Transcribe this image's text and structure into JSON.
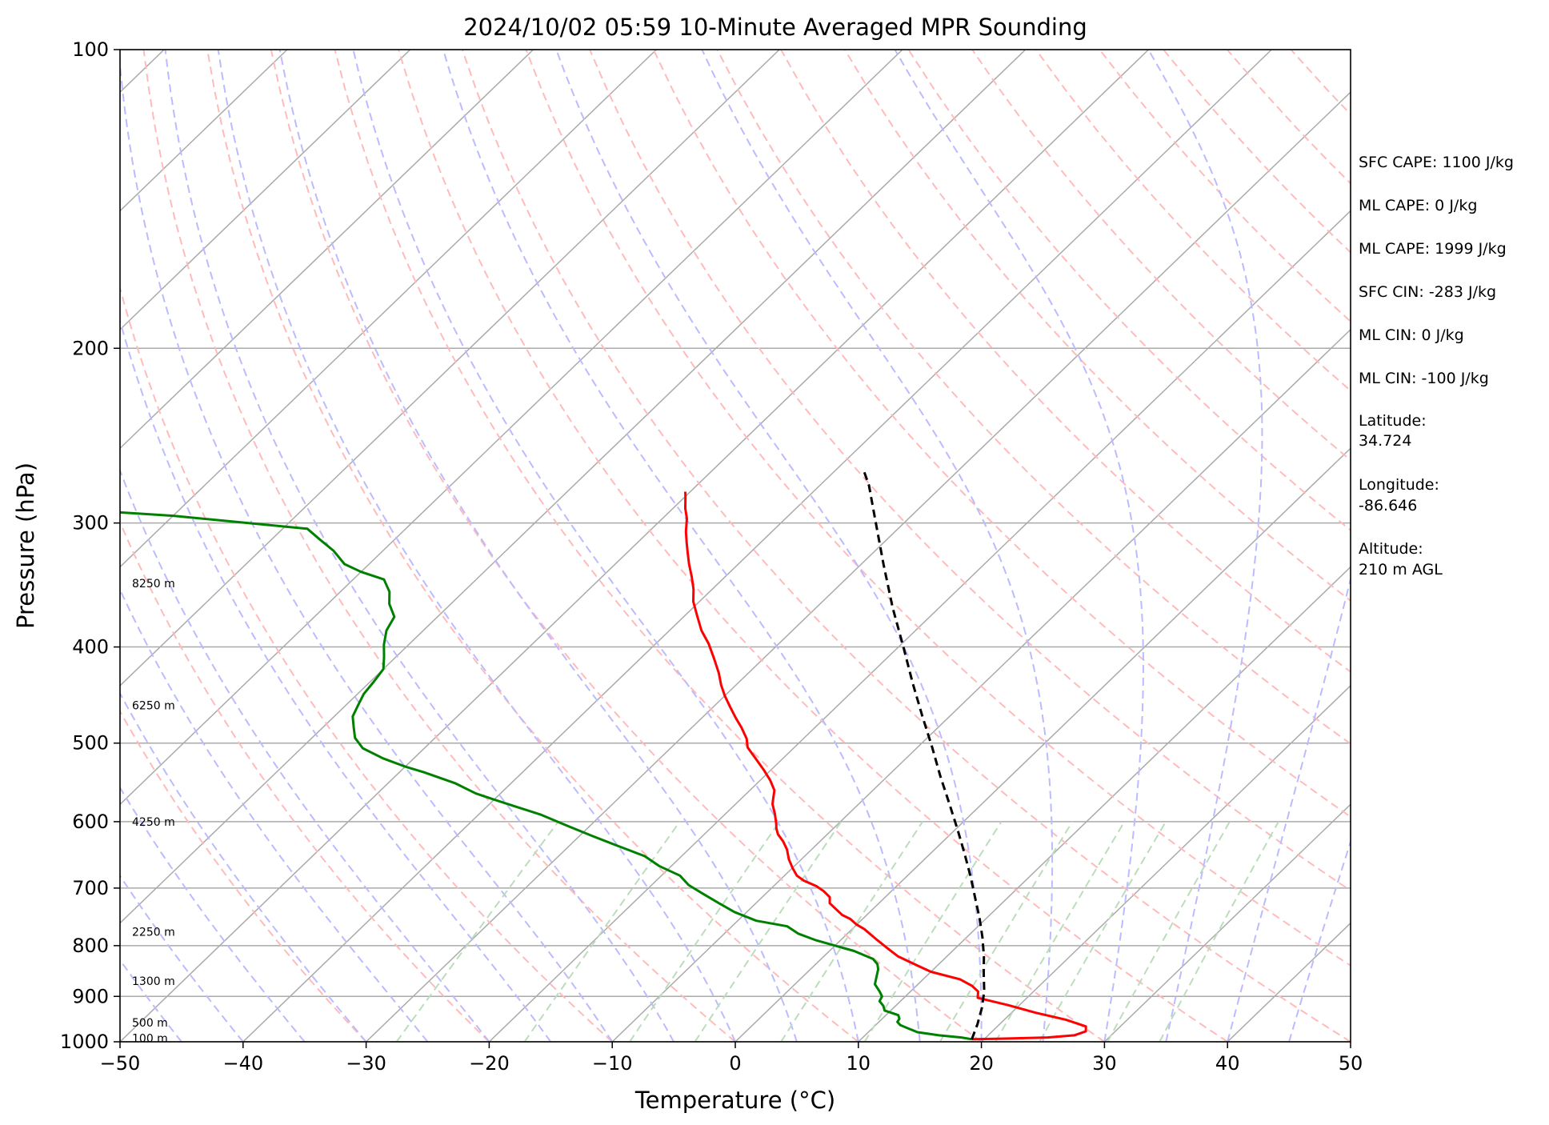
{
  "chart_data": {
    "type": "line",
    "title": "2024/10/02 05:59 10-Minute Averaged MPR Sounding",
    "xlabel": "Temperature (°C)",
    "ylabel": "Pressure (hPa)",
    "xlim": [
      -50,
      50
    ],
    "ylim": [
      1000,
      100
    ],
    "yscale": "log",
    "skew": "skew-T",
    "grid": true,
    "x_ticks": [
      "−50",
      "−40",
      "−30",
      "−20",
      "−10",
      "0",
      "10",
      "20",
      "30",
      "40",
      "50"
    ],
    "y_ticks": [
      "100",
      "200",
      "300",
      "400",
      "500",
      "600",
      "700",
      "800",
      "900",
      "1000"
    ],
    "height_labels": [
      "8250 m",
      "6250 m",
      "4250 m",
      "2250 m",
      "1300 m",
      "500 m",
      "100 m"
    ],
    "series": [
      {
        "role": "temperature",
        "color": "#ff0000",
        "points": [
          [
            19,
            994
          ],
          [
            21,
            993
          ],
          [
            25,
            990
          ],
          [
            27,
            985
          ],
          [
            27.6,
            976
          ],
          [
            27.2,
            965
          ],
          [
            25,
            950
          ],
          [
            22,
            935
          ],
          [
            19,
            918
          ],
          [
            16,
            903
          ],
          [
            15.5,
            890
          ],
          [
            14.5,
            878
          ],
          [
            13,
            865
          ],
          [
            10,
            850
          ],
          [
            8,
            835
          ],
          [
            6,
            820
          ],
          [
            4.5,
            805
          ],
          [
            3,
            790
          ],
          [
            2,
            780
          ],
          [
            1,
            770
          ],
          [
            0,
            762
          ],
          [
            -1,
            752
          ],
          [
            -2,
            745
          ],
          [
            -3,
            735
          ],
          [
            -4,
            725
          ],
          [
            -4.5,
            715
          ],
          [
            -5.5,
            705
          ],
          [
            -6.5,
            697
          ],
          [
            -8,
            688
          ],
          [
            -9,
            680
          ],
          [
            -10,
            668
          ],
          [
            -11,
            655
          ],
          [
            -12,
            640
          ],
          [
            -13,
            628
          ],
          [
            -14,
            618
          ],
          [
            -14.6,
            610
          ],
          [
            -15.1,
            602
          ],
          [
            -16,
            589
          ],
          [
            -17,
            576
          ],
          [
            -17.5,
            567
          ],
          [
            -18,
            558
          ],
          [
            -19.2,
            545
          ],
          [
            -20.6,
            532
          ],
          [
            -22,
            520
          ],
          [
            -23.8,
            505
          ],
          [
            -24.6,
            495
          ],
          [
            -26,
            482
          ],
          [
            -27.2,
            472
          ],
          [
            -28.6,
            460
          ],
          [
            -30,
            448
          ],
          [
            -31.2,
            437
          ],
          [
            -32.4,
            425
          ],
          [
            -34,
            411
          ],
          [
            -35.7,
            397
          ],
          [
            -37.4,
            385
          ],
          [
            -39,
            372
          ],
          [
            -40.5,
            360
          ],
          [
            -41.5,
            350
          ],
          [
            -42.7,
            340
          ],
          [
            -44,
            330
          ],
          [
            -45,
            322
          ],
          [
            -46,
            314
          ],
          [
            -47,
            306
          ],
          [
            -48,
            297
          ],
          [
            -49,
            290
          ],
          [
            -50,
            282
          ],
          [
            -50.4,
            279
          ]
        ]
      },
      {
        "role": "dewpoint",
        "color": "#008000",
        "points": [
          [
            19,
            994
          ],
          [
            18,
            990
          ],
          [
            16,
            985
          ],
          [
            14,
            978
          ],
          [
            13,
            970
          ],
          [
            12,
            962
          ],
          [
            11.5,
            955
          ],
          [
            11.4,
            948
          ],
          [
            11,
            940
          ],
          [
            9.5,
            930
          ],
          [
            9,
            920
          ],
          [
            8.3,
            910
          ],
          [
            8.1,
            900
          ],
          [
            7.5,
            890
          ],
          [
            6.5,
            875
          ],
          [
            6,
            860
          ],
          [
            5.5,
            845
          ],
          [
            5,
            835
          ],
          [
            4.2,
            825
          ],
          [
            2,
            810
          ],
          [
            0,
            800
          ],
          [
            -2,
            790
          ],
          [
            -4,
            778
          ],
          [
            -5.5,
            765
          ],
          [
            -8.5,
            755
          ],
          [
            -11,
            740
          ],
          [
            -13,
            725
          ],
          [
            -15,
            710
          ],
          [
            -17,
            695
          ],
          [
            -18.5,
            680
          ],
          [
            -21,
            665
          ],
          [
            -23,
            650
          ],
          [
            -26,
            635
          ],
          [
            -29,
            620
          ],
          [
            -32,
            605
          ],
          [
            -35,
            590
          ],
          [
            -38,
            578
          ],
          [
            -40,
            570
          ],
          [
            -42,
            562
          ],
          [
            -44.5,
            549
          ],
          [
            -48,
            535
          ],
          [
            -50,
            528
          ],
          [
            -52.5,
            518
          ],
          [
            -55,
            506
          ],
          [
            -56.5,
            494
          ],
          [
            -57.5,
            482
          ],
          [
            -58.5,
            470
          ],
          [
            -59,
            458
          ],
          [
            -59.5,
            446
          ],
          [
            -59.7,
            434
          ],
          [
            -60,
            421
          ],
          [
            -61,
            409
          ],
          [
            -62,
            398
          ],
          [
            -63,
            385
          ],
          [
            -63.5,
            373
          ],
          [
            -65,
            362
          ],
          [
            -66,
            352
          ],
          [
            -67.5,
            342
          ],
          [
            -70,
            336
          ],
          [
            -72,
            330
          ],
          [
            -74,
            320
          ],
          [
            -76,
            312
          ],
          [
            -78,
            304
          ],
          [
            -90,
            295
          ],
          [
            -100,
            290
          ],
          [
            -106,
            282
          ],
          [
            -120,
            277
          ]
        ]
      },
      {
        "role": "parcel",
        "color": "#000000",
        "points": [
          [
            19,
            994
          ],
          [
            18.2,
            960
          ],
          [
            17.2,
            925
          ],
          [
            16,
            890
          ],
          [
            14.5,
            855
          ],
          [
            13,
            820
          ],
          [
            11.3,
            785
          ],
          [
            9.4,
            750
          ],
          [
            7.3,
            715
          ],
          [
            5.1,
            680
          ],
          [
            2.7,
            645
          ],
          [
            0.1,
            610
          ],
          [
            -2.7,
            575
          ],
          [
            -5.7,
            540
          ],
          [
            -8.8,
            505
          ],
          [
            -12.2,
            470
          ],
          [
            -15.8,
            435
          ],
          [
            -19.6,
            400
          ],
          [
            -23.8,
            365
          ],
          [
            -28.2,
            330
          ],
          [
            -33,
            295
          ],
          [
            -36,
            275
          ],
          [
            -37.8,
            265
          ]
        ]
      }
    ]
  },
  "info_panel": {
    "sfc_cape": "SFC CAPE: 1100 J/kg",
    "ml_cape_1": "ML CAPE: 0 J/kg",
    "ml_cape_2": "ML CAPE: 1999 J/kg",
    "sfc_cin": "SFC CIN: -283 J/kg",
    "ml_cin_1": "ML CIN: 0 J/kg",
    "ml_cin_2": "ML CIN: -100 J/kg",
    "latitude_label": "Latitude:",
    "latitude_value": "34.724",
    "longitude_label": "Longitude:",
    "longitude_value": "-86.646",
    "altitude_label": "Altitude:",
    "altitude_value": "210 m AGL"
  },
  "colors": {
    "isotherm": "#aaaaaa",
    "isobar": "#aaaaaa",
    "dry_adiabat": "#ffbbbb",
    "moist_adiabat": "#bbbbff",
    "mixing_ratio": "#bbddbb"
  }
}
